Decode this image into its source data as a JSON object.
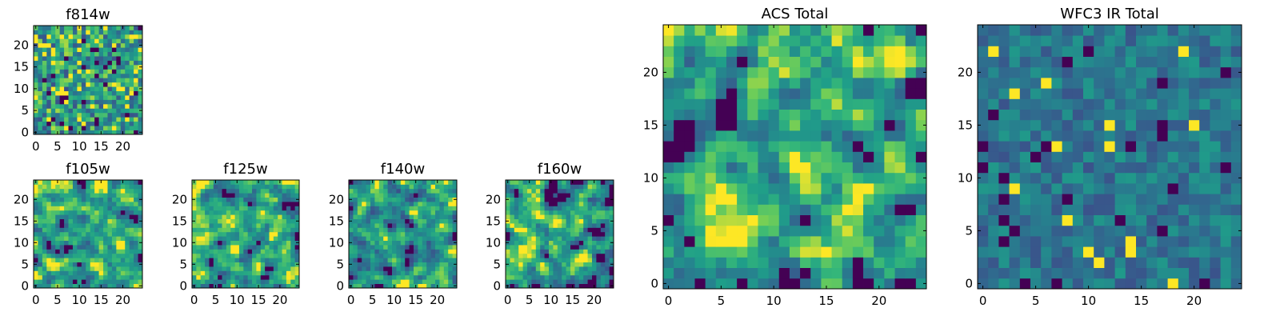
{
  "chart_data": [
    {
      "type": "heatmap",
      "title": "f814w",
      "rows": 25,
      "cols": 25,
      "seed": 11,
      "mode": "noisy",
      "bias": 0.62,
      "xlim": [
        0,
        24
      ],
      "ylim": [
        0,
        24
      ],
      "xticks": [
        0,
        5,
        10,
        15,
        20
      ],
      "yticks": [
        0,
        5,
        10,
        15,
        20
      ],
      "colormap": "viridis"
    },
    {
      "type": "heatmap",
      "title": "f105w",
      "rows": 25,
      "cols": 25,
      "seed": 23,
      "mode": "smooth",
      "bias": 0.68,
      "xlim": [
        0,
        24
      ],
      "ylim": [
        0,
        24
      ],
      "xticks": [
        0,
        5,
        10,
        15,
        20
      ],
      "yticks": [
        0,
        5,
        10,
        15,
        20
      ],
      "colormap": "viridis"
    },
    {
      "type": "heatmap",
      "title": "f125w",
      "rows": 25,
      "cols": 25,
      "seed": 37,
      "mode": "smooth",
      "bias": 0.66,
      "xlim": [
        0,
        24
      ],
      "ylim": [
        0,
        24
      ],
      "xticks": [
        0,
        5,
        10,
        15,
        20
      ],
      "yticks": [
        0,
        5,
        10,
        15,
        20
      ],
      "colormap": "viridis"
    },
    {
      "type": "heatmap",
      "title": "f140w",
      "rows": 25,
      "cols": 25,
      "seed": 41,
      "mode": "smooth",
      "bias": 0.6,
      "xlim": [
        0,
        24
      ],
      "ylim": [
        0,
        24
      ],
      "xticks": [
        0,
        5,
        10,
        15,
        20
      ],
      "yticks": [
        0,
        5,
        10,
        15,
        20
      ],
      "colormap": "viridis"
    },
    {
      "type": "heatmap",
      "title": "f160w",
      "rows": 25,
      "cols": 25,
      "seed": 53,
      "mode": "smooth",
      "bias": 0.64,
      "xlim": [
        0,
        24
      ],
      "ylim": [
        0,
        24
      ],
      "xticks": [
        0,
        5,
        10,
        15,
        20
      ],
      "yticks": [
        0,
        5,
        10,
        15,
        20
      ],
      "colormap": "viridis"
    },
    {
      "type": "heatmap",
      "title": "ACS Total",
      "rows": 25,
      "cols": 25,
      "seed": 67,
      "mode": "acs",
      "bias": 0.68,
      "xlim": [
        0,
        24
      ],
      "ylim": [
        0,
        24
      ],
      "xticks": [
        0,
        5,
        10,
        15,
        20
      ],
      "yticks": [
        0,
        5,
        10,
        15,
        20
      ],
      "colormap": "viridis"
    },
    {
      "type": "heatmap",
      "title": "WFC3 IR Total",
      "rows": 25,
      "cols": 25,
      "seed": 79,
      "mode": "ir",
      "bias": 0.45,
      "xlim": [
        0,
        24
      ],
      "ylim": [
        0,
        24
      ],
      "xticks": [
        0,
        5,
        10,
        15,
        20
      ],
      "yticks": [
        0,
        5,
        10,
        15,
        20
      ],
      "colormap": "viridis"
    }
  ]
}
